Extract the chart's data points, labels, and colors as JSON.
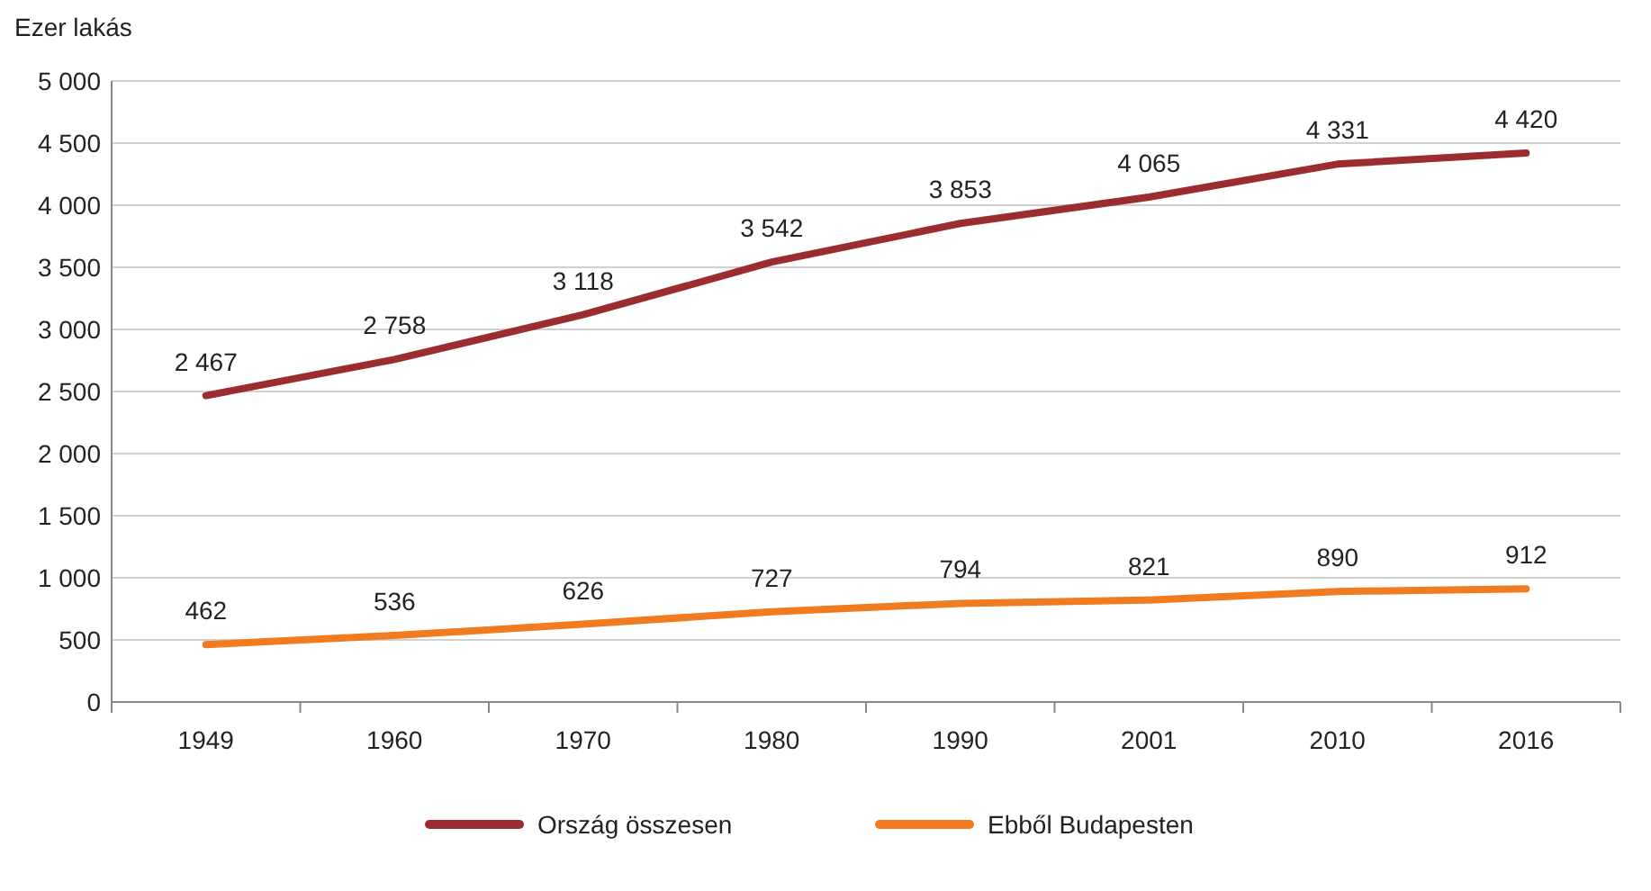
{
  "chart_data": {
    "type": "line",
    "ylabel": "Ezer lakás",
    "categories": [
      "1949",
      "1960",
      "1970",
      "1980",
      "1990",
      "2001",
      "2010",
      "2016"
    ],
    "series": [
      {
        "name": "Ország összesen",
        "color": "#9b2d30",
        "values": [
          2467,
          2758,
          3118,
          3542,
          3853,
          4065,
          4331,
          4420
        ],
        "value_labels": [
          "2 467",
          "2 758",
          "3 118",
          "3 542",
          "3 853",
          "4 065",
          "4 331",
          "4 420"
        ]
      },
      {
        "name": "Ebből Budapesten",
        "color": "#f07b21",
        "values": [
          462,
          536,
          626,
          727,
          794,
          821,
          890,
          912
        ],
        "value_labels": [
          "462",
          "536",
          "626",
          "727",
          "794",
          "821",
          "890",
          "912"
        ]
      }
    ],
    "ylim": [
      0,
      5000
    ],
    "yticks": [
      0,
      {
        "value": 500,
        "label": "500"
      },
      {
        "value": 1000,
        "label": "1 000"
      },
      {
        "value": 1500,
        "label": "1 500"
      },
      {
        "value": 2000,
        "label": "2 000"
      },
      {
        "value": 2500,
        "label": "2 500"
      },
      {
        "value": 3000,
        "label": "3 000"
      },
      {
        "value": 3500,
        "label": "3 500"
      },
      {
        "value": 4000,
        "label": "4 000"
      },
      {
        "value": 4500,
        "label": "4 500"
      },
      {
        "value": 5000,
        "label": "5 000"
      }
    ],
    "grid": "y",
    "legend": "bottom",
    "marker": "none",
    "line_style": "solid"
  }
}
